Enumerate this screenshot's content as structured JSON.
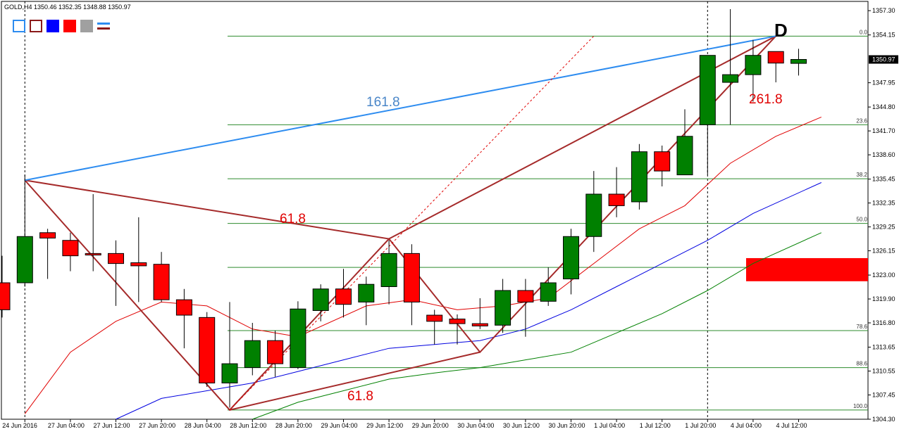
{
  "window": {
    "title": "GOLD,H4  1350.46 1352.35 1348.88 1350.97"
  },
  "toolbar": {
    "buttons": [
      "rectangle-outline-blue",
      "rectangle-outline-red",
      "fill-blue",
      "fill-red",
      "fill-gray",
      "line-style"
    ]
  },
  "chart_data": {
    "type": "candlestick",
    "symbol": "GOLD",
    "timeframe": "H4",
    "ylim": [
      1304.3,
      1358.5
    ],
    "price_ticks": [
      "1357.30",
      "1354.15",
      "1350.97",
      "1347.95",
      "1344.80",
      "1341.70",
      "1338.60",
      "1335.45",
      "1332.35",
      "1329.25",
      "1326.15",
      "1323.00",
      "1319.90",
      "1316.80",
      "1313.65",
      "1310.55",
      "1307.45",
      "1304.30"
    ],
    "current_price": "1350.97",
    "x_labels": [
      "24 Jun 2016",
      "27 Jun 04:00",
      "27 Jun 12:00",
      "27 Jun 20:00",
      "28 Jun 04:00",
      "28 Jun 12:00",
      "28 Jun 20:00",
      "29 Jun 04:00",
      "29 Jun 12:00",
      "29 Jun 20:00",
      "30 Jun 04:00",
      "30 Jun 12:00",
      "30 Jun 20:00",
      "1 Jul 04:00",
      "1 Jul 12:00",
      "1 Jul 20:00",
      "4 Jul 04:00",
      "4 Jul 12:00"
    ],
    "candles": [
      {
        "o": 1322.0,
        "h": 1325.5,
        "l": 1317.5,
        "c": 1318.5
      },
      {
        "o": 1322.0,
        "h": 1336.0,
        "l": 1321.5,
        "c": 1328.0
      },
      {
        "o": 1328.5,
        "h": 1329.0,
        "l": 1322.5,
        "c": 1327.8
      },
      {
        "o": 1327.5,
        "h": 1328.5,
        "l": 1323.5,
        "c": 1325.5
      },
      {
        "o": 1325.8,
        "h": 1333.5,
        "l": 1323.5,
        "c": 1325.6
      },
      {
        "o": 1325.8,
        "h": 1327.5,
        "l": 1319.0,
        "c": 1324.5
      },
      {
        "o": 1324.6,
        "h": 1330.5,
        "l": 1319.5,
        "c": 1324.2
      },
      {
        "o": 1324.4,
        "h": 1326.0,
        "l": 1319.5,
        "c": 1319.8
      },
      {
        "o": 1319.8,
        "h": 1321.2,
        "l": 1313.5,
        "c": 1317.8
      },
      {
        "o": 1317.5,
        "h": 1318.2,
        "l": 1308.5,
        "c": 1309.0
      },
      {
        "o": 1309.0,
        "h": 1319.5,
        "l": 1305.8,
        "c": 1311.5
      },
      {
        "o": 1311.0,
        "h": 1316.8,
        "l": 1310.0,
        "c": 1314.5
      },
      {
        "o": 1314.5,
        "h": 1315.8,
        "l": 1309.8,
        "c": 1311.5
      },
      {
        "o": 1311.0,
        "h": 1319.6,
        "l": 1310.8,
        "c": 1318.6
      },
      {
        "o": 1318.4,
        "h": 1321.8,
        "l": 1317.0,
        "c": 1321.2
      },
      {
        "o": 1321.2,
        "h": 1323.8,
        "l": 1317.5,
        "c": 1319.2
      },
      {
        "o": 1319.5,
        "h": 1322.8,
        "l": 1316.5,
        "c": 1321.8
      },
      {
        "o": 1321.5,
        "h": 1327.5,
        "l": 1319.2,
        "c": 1325.8
      },
      {
        "o": 1325.8,
        "h": 1327.0,
        "l": 1316.5,
        "c": 1319.5
      },
      {
        "o": 1317.8,
        "h": 1318.5,
        "l": 1314.0,
        "c": 1317.0
      },
      {
        "o": 1317.3,
        "h": 1317.9,
        "l": 1314.0,
        "c": 1316.7
      },
      {
        "o": 1316.7,
        "h": 1320.0,
        "l": 1316.0,
        "c": 1316.4
      },
      {
        "o": 1316.5,
        "h": 1322.5,
        "l": 1315.5,
        "c": 1321.0
      },
      {
        "o": 1321.0,
        "h": 1322.5,
        "l": 1315.0,
        "c": 1319.5
      },
      {
        "o": 1319.6,
        "h": 1324.0,
        "l": 1319.0,
        "c": 1322.0
      },
      {
        "o": 1322.5,
        "h": 1329.0,
        "l": 1320.5,
        "c": 1328.0
      },
      {
        "o": 1328.0,
        "h": 1336.5,
        "l": 1326.0,
        "c": 1333.5
      },
      {
        "o": 1333.5,
        "h": 1337.0,
        "l": 1330.5,
        "c": 1332.0
      },
      {
        "o": 1332.5,
        "h": 1340.0,
        "l": 1331.5,
        "c": 1339.0
      },
      {
        "o": 1339.0,
        "h": 1339.8,
        "l": 1334.5,
        "c": 1336.5
      },
      {
        "o": 1336.0,
        "h": 1344.5,
        "l": 1336.0,
        "c": 1341.0
      },
      {
        "o": 1342.5,
        "h": 1351.5,
        "l": 1336.0,
        "c": 1351.5
      },
      {
        "o": 1348.0,
        "h": 1357.5,
        "l": 1342.5,
        "c": 1349.0
      },
      {
        "o": 1349.0,
        "h": 1353.5,
        "l": 1345.5,
        "c": 1351.5
      },
      {
        "o": 1352.0,
        "h": 1352.0,
        "l": 1348.0,
        "c": 1350.5
      },
      {
        "o": 1350.46,
        "h": 1352.35,
        "l": 1348.88,
        "c": 1350.97
      }
    ],
    "moving_averages": [
      {
        "color": "#e00000",
        "points": [
          [
            1,
            1305.0
          ],
          [
            3,
            1313.0
          ],
          [
            5,
            1317.0
          ],
          [
            7,
            1319.5
          ],
          [
            9,
            1319.0
          ],
          [
            11,
            1316.0
          ],
          [
            13,
            1315.0
          ],
          [
            16,
            1319.0
          ],
          [
            18,
            1319.8
          ],
          [
            20,
            1318.5
          ],
          [
            22,
            1319.0
          ],
          [
            24,
            1320.0
          ],
          [
            26,
            1324.5
          ],
          [
            28,
            1329.0
          ],
          [
            30,
            1332.0
          ],
          [
            32,
            1337.5
          ],
          [
            34,
            1341.0
          ],
          [
            36,
            1343.5
          ]
        ]
      },
      {
        "color": "#0000e0",
        "points": [
          [
            5,
            1304.3
          ],
          [
            7,
            1307.0
          ],
          [
            9,
            1308.0
          ],
          [
            11,
            1309.0
          ],
          [
            13,
            1310.5
          ],
          [
            15,
            1312.0
          ],
          [
            17,
            1313.5
          ],
          [
            19,
            1314.0
          ],
          [
            21,
            1314.5
          ],
          [
            23,
            1316.0
          ],
          [
            25,
            1318.5
          ],
          [
            27,
            1321.5
          ],
          [
            29,
            1324.5
          ],
          [
            31,
            1327.5
          ],
          [
            33,
            1331.0
          ],
          [
            36,
            1335.0
          ]
        ]
      },
      {
        "color": "#008000",
        "points": [
          [
            11,
            1304.3
          ],
          [
            13,
            1306.5
          ],
          [
            15,
            1308.0
          ],
          [
            17,
            1309.5
          ],
          [
            19,
            1310.3
          ],
          [
            21,
            1311.0
          ],
          [
            23,
            1312.0
          ],
          [
            25,
            1313.0
          ],
          [
            27,
            1315.5
          ],
          [
            29,
            1318.0
          ],
          [
            31,
            1321.0
          ],
          [
            33,
            1324.5
          ],
          [
            36,
            1328.5
          ]
        ]
      }
    ],
    "fib_levels": [
      {
        "label": "0.0",
        "price": 1354.0
      },
      {
        "label": "23.6",
        "price": 1342.5
      },
      {
        "label": "38.2",
        "price": 1335.5
      },
      {
        "label": "50.0",
        "price": 1329.7
      },
      {
        "label": "61.8",
        "price": 1324.0
      },
      {
        "label": "78.6",
        "price": 1315.8
      },
      {
        "label": "88.6",
        "price": 1311.0
      },
      {
        "label": "100.0",
        "price": 1305.5
      }
    ],
    "annotations": [
      {
        "text": "161.8",
        "color": "#4a86c8"
      },
      {
        "text": "61.8",
        "color": "#e00000"
      },
      {
        "text": "61.8",
        "color": "#e00000"
      },
      {
        "text": "261.8",
        "color": "#e00000"
      },
      {
        "text": "D",
        "color": "#000000"
      }
    ],
    "red_zone": {
      "price_top": 1325.2,
      "price_bottom": 1322.2
    },
    "grid": false
  }
}
